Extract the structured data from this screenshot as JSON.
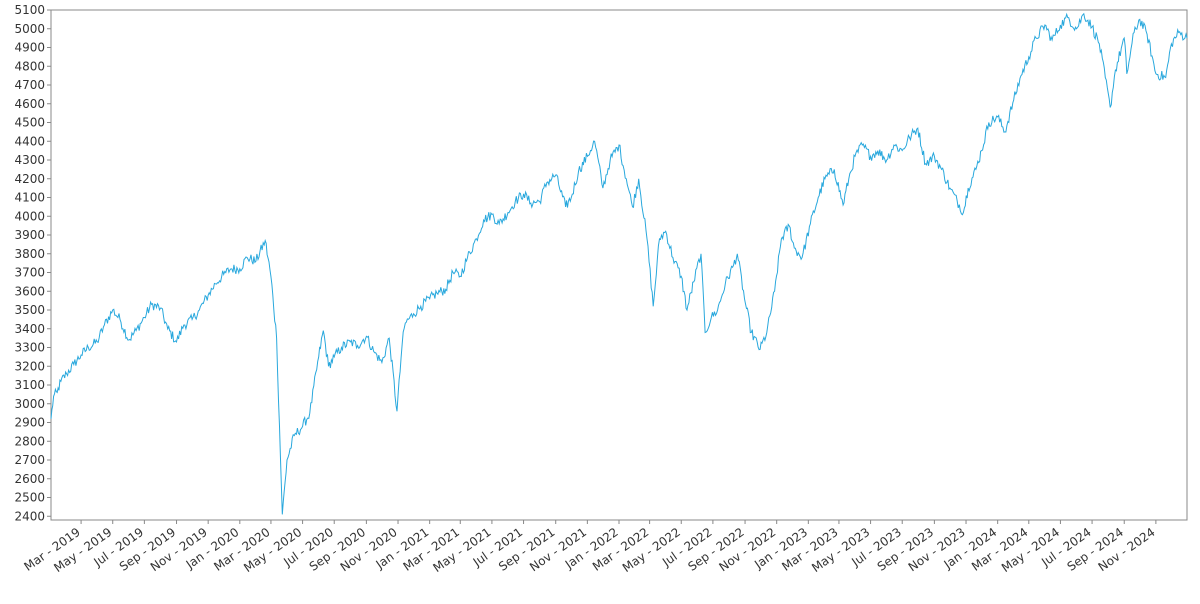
{
  "chart_data": {
    "type": "line",
    "title": "",
    "xlabel": "",
    "ylabel": "",
    "grid": false,
    "legend": "none",
    "ylim": [
      2380,
      5100
    ],
    "y_ticks": [
      2400,
      2500,
      2600,
      2700,
      2800,
      2900,
      3000,
      3100,
      3200,
      3300,
      3400,
      3500,
      3600,
      3700,
      3800,
      3900,
      4000,
      4100,
      4200,
      4300,
      4400,
      4500,
      4600,
      4700,
      4800,
      4900,
      5000,
      5100
    ],
    "xlim": [
      "2019-01-02",
      "2024-12-31"
    ],
    "x_ticks": [
      {
        "date": "2019-03-01",
        "label": "Mar - 2019"
      },
      {
        "date": "2019-05-01",
        "label": "May - 2019"
      },
      {
        "date": "2019-07-01",
        "label": "Jul - 2019"
      },
      {
        "date": "2019-09-01",
        "label": "Sep - 2019"
      },
      {
        "date": "2019-11-01",
        "label": "Nov - 2019"
      },
      {
        "date": "2020-01-01",
        "label": "Jan - 2020"
      },
      {
        "date": "2020-03-01",
        "label": "Mar - 2020"
      },
      {
        "date": "2020-05-01",
        "label": "May - 2020"
      },
      {
        "date": "2020-07-01",
        "label": "Jul - 2020"
      },
      {
        "date": "2020-09-01",
        "label": "Sep - 2020"
      },
      {
        "date": "2020-11-01",
        "label": "Nov - 2020"
      },
      {
        "date": "2021-01-01",
        "label": "Jan - 2021"
      },
      {
        "date": "2021-03-01",
        "label": "Mar - 2021"
      },
      {
        "date": "2021-05-01",
        "label": "May - 2021"
      },
      {
        "date": "2021-07-01",
        "label": "Jul - 2021"
      },
      {
        "date": "2021-09-01",
        "label": "Sep - 2021"
      },
      {
        "date": "2021-11-01",
        "label": "Nov - 2021"
      },
      {
        "date": "2022-01-01",
        "label": "Jan - 2022"
      },
      {
        "date": "2022-03-01",
        "label": "Mar - 2022"
      },
      {
        "date": "2022-05-01",
        "label": "May - 2022"
      },
      {
        "date": "2022-07-01",
        "label": "Jul - 2022"
      },
      {
        "date": "2022-09-01",
        "label": "Sep - 2022"
      },
      {
        "date": "2022-11-01",
        "label": "Nov - 2022"
      },
      {
        "date": "2023-01-01",
        "label": "Jan - 2023"
      },
      {
        "date": "2023-03-01",
        "label": "Mar - 2023"
      },
      {
        "date": "2023-05-01",
        "label": "May - 2023"
      },
      {
        "date": "2023-07-01",
        "label": "Jul - 2023"
      },
      {
        "date": "2023-09-01",
        "label": "Sep - 2023"
      },
      {
        "date": "2023-11-01",
        "label": "Nov - 2023"
      },
      {
        "date": "2024-01-01",
        "label": "Jan - 2024"
      },
      {
        "date": "2024-03-01",
        "label": "Mar - 2024"
      },
      {
        "date": "2024-05-01",
        "label": "May - 2024"
      },
      {
        "date": "2024-07-01",
        "label": "Jul - 2024"
      },
      {
        "date": "2024-09-01",
        "label": "Sep - 2024"
      },
      {
        "date": "2024-11-01",
        "label": "Nov - 2024"
      }
    ],
    "series": [
      {
        "color": "#29a8dd",
        "points": [
          [
            "2019-01-02",
            2920
          ],
          [
            "2019-01-07",
            3040
          ],
          [
            "2019-01-14",
            3060
          ],
          [
            "2019-01-21",
            3120
          ],
          [
            "2019-02-01",
            3160
          ],
          [
            "2019-02-15",
            3210
          ],
          [
            "2019-03-01",
            3260
          ],
          [
            "2019-03-15",
            3300
          ],
          [
            "2019-04-01",
            3330
          ],
          [
            "2019-04-15",
            3420
          ],
          [
            "2019-05-01",
            3500
          ],
          [
            "2019-05-15",
            3450
          ],
          [
            "2019-06-01",
            3340
          ],
          [
            "2019-06-15",
            3390
          ],
          [
            "2019-07-01",
            3460
          ],
          [
            "2019-07-15",
            3530
          ],
          [
            "2019-08-01",
            3510
          ],
          [
            "2019-08-15",
            3400
          ],
          [
            "2019-09-01",
            3330
          ],
          [
            "2019-09-15",
            3420
          ],
          [
            "2019-10-01",
            3450
          ],
          [
            "2019-10-15",
            3500
          ],
          [
            "2019-11-01",
            3580
          ],
          [
            "2019-11-15",
            3640
          ],
          [
            "2019-12-01",
            3690
          ],
          [
            "2019-12-15",
            3720
          ],
          [
            "2020-01-01",
            3720
          ],
          [
            "2020-01-15",
            3780
          ],
          [
            "2020-02-01",
            3760
          ],
          [
            "2020-02-19",
            3870
          ],
          [
            "2020-03-01",
            3680
          ],
          [
            "2020-03-12",
            3350
          ],
          [
            "2020-03-23",
            2410
          ],
          [
            "2020-04-01",
            2700
          ],
          [
            "2020-04-15",
            2830
          ],
          [
            "2020-05-01",
            2880
          ],
          [
            "2020-05-15",
            2950
          ],
          [
            "2020-06-01",
            3250
          ],
          [
            "2020-06-10",
            3390
          ],
          [
            "2020-06-20",
            3200
          ],
          [
            "2020-07-01",
            3250
          ],
          [
            "2020-07-15",
            3300
          ],
          [
            "2020-08-01",
            3330
          ],
          [
            "2020-08-15",
            3310
          ],
          [
            "2020-09-01",
            3360
          ],
          [
            "2020-09-15",
            3280
          ],
          [
            "2020-10-01",
            3220
          ],
          [
            "2020-10-15",
            3350
          ],
          [
            "2020-10-30",
            2960
          ],
          [
            "2020-11-09",
            3320
          ],
          [
            "2020-11-15",
            3430
          ],
          [
            "2020-12-01",
            3480
          ],
          [
            "2020-12-15",
            3520
          ],
          [
            "2021-01-01",
            3560
          ],
          [
            "2021-01-15",
            3590
          ],
          [
            "2021-02-01",
            3610
          ],
          [
            "2021-02-15",
            3700
          ],
          [
            "2021-03-01",
            3680
          ],
          [
            "2021-03-15",
            3780
          ],
          [
            "2021-04-01",
            3880
          ],
          [
            "2021-04-15",
            3980
          ],
          [
            "2021-05-01",
            4010
          ],
          [
            "2021-05-15",
            3960
          ],
          [
            "2021-06-01",
            4020
          ],
          [
            "2021-06-15",
            4080
          ],
          [
            "2021-07-01",
            4120
          ],
          [
            "2021-07-15",
            4070
          ],
          [
            "2021-08-01",
            4080
          ],
          [
            "2021-08-15",
            4180
          ],
          [
            "2021-09-01",
            4220
          ],
          [
            "2021-09-20",
            4050
          ],
          [
            "2021-10-01",
            4100
          ],
          [
            "2021-10-15",
            4240
          ],
          [
            "2021-11-01",
            4320
          ],
          [
            "2021-11-15",
            4400
          ],
          [
            "2021-12-01",
            4150
          ],
          [
            "2021-12-15",
            4300
          ],
          [
            "2022-01-01",
            4380
          ],
          [
            "2022-01-15",
            4200
          ],
          [
            "2022-01-27",
            4050
          ],
          [
            "2022-02-08",
            4200
          ],
          [
            "2022-02-24",
            3880
          ],
          [
            "2022-03-08",
            3520
          ],
          [
            "2022-03-20",
            3880
          ],
          [
            "2022-04-01",
            3920
          ],
          [
            "2022-04-15",
            3780
          ],
          [
            "2022-05-01",
            3680
          ],
          [
            "2022-05-12",
            3500
          ],
          [
            "2022-05-25",
            3650
          ],
          [
            "2022-06-08",
            3800
          ],
          [
            "2022-06-16",
            3380
          ],
          [
            "2022-06-28",
            3460
          ],
          [
            "2022-07-10",
            3500
          ],
          [
            "2022-07-25",
            3640
          ],
          [
            "2022-08-10",
            3740
          ],
          [
            "2022-08-17",
            3800
          ],
          [
            "2022-08-31",
            3560
          ],
          [
            "2022-09-13",
            3380
          ],
          [
            "2022-09-30",
            3290
          ],
          [
            "2022-10-13",
            3380
          ],
          [
            "2022-10-28",
            3600
          ],
          [
            "2022-11-10",
            3880
          ],
          [
            "2022-11-25",
            3950
          ],
          [
            "2022-12-05",
            3830
          ],
          [
            "2022-12-20",
            3780
          ],
          [
            "2023-01-05",
            3960
          ],
          [
            "2023-01-20",
            4100
          ],
          [
            "2023-02-02",
            4200
          ],
          [
            "2023-02-20",
            4250
          ],
          [
            "2023-03-09",
            4060
          ],
          [
            "2023-03-20",
            4200
          ],
          [
            "2023-04-01",
            4320
          ],
          [
            "2023-04-15",
            4380
          ],
          [
            "2023-05-01",
            4320
          ],
          [
            "2023-05-15",
            4350
          ],
          [
            "2023-06-01",
            4300
          ],
          [
            "2023-06-15",
            4380
          ],
          [
            "2023-07-01",
            4350
          ],
          [
            "2023-07-15",
            4420
          ],
          [
            "2023-07-31",
            4470
          ],
          [
            "2023-08-15",
            4280
          ],
          [
            "2023-09-01",
            4320
          ],
          [
            "2023-09-15",
            4250
          ],
          [
            "2023-10-01",
            4150
          ],
          [
            "2023-10-27",
            4020
          ],
          [
            "2023-11-05",
            4150
          ],
          [
            "2023-11-20",
            4250
          ],
          [
            "2023-12-01",
            4350
          ],
          [
            "2023-12-15",
            4500
          ],
          [
            "2024-01-01",
            4530
          ],
          [
            "2024-01-15",
            4450
          ],
          [
            "2024-02-01",
            4620
          ],
          [
            "2024-02-15",
            4750
          ],
          [
            "2024-03-01",
            4850
          ],
          [
            "2024-03-15",
            4950
          ],
          [
            "2024-04-01",
            5020
          ],
          [
            "2024-04-15",
            4940
          ],
          [
            "2024-05-01",
            5020
          ],
          [
            "2024-05-15",
            5060
          ],
          [
            "2024-06-01",
            5000
          ],
          [
            "2024-06-15",
            5080
          ],
          [
            "2024-07-01",
            5010
          ],
          [
            "2024-07-15",
            4920
          ],
          [
            "2024-08-05",
            4580
          ],
          [
            "2024-08-15",
            4780
          ],
          [
            "2024-09-01",
            4950
          ],
          [
            "2024-09-06",
            4760
          ],
          [
            "2024-09-20",
            4980
          ],
          [
            "2024-10-01",
            5050
          ],
          [
            "2024-10-15",
            4970
          ],
          [
            "2024-11-01",
            4760
          ],
          [
            "2024-11-20",
            4740
          ],
          [
            "2024-12-01",
            4920
          ],
          [
            "2024-12-15",
            4980
          ],
          [
            "2024-12-31",
            4950
          ]
        ]
      }
    ]
  }
}
